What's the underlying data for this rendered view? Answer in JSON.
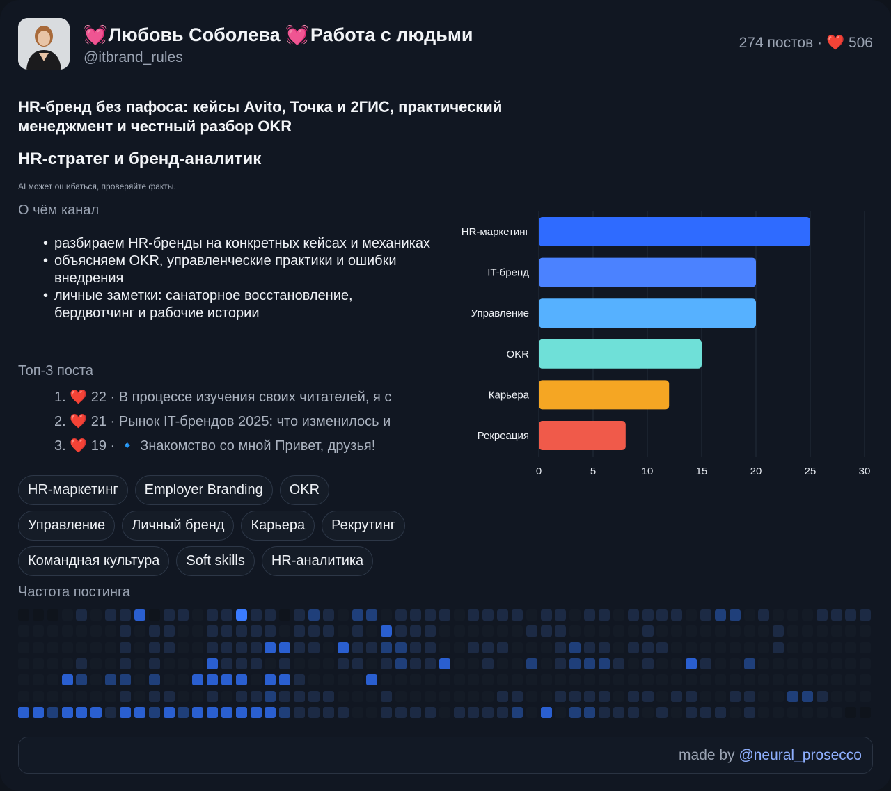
{
  "header": {
    "emoji": "💓",
    "name": "Любовь Соболева",
    "channel": "Работа с людьми",
    "handle": "@itbrand_rules",
    "posts_count": "274 постов",
    "stats_sep": "·",
    "heart": "❤️",
    "likes": "506"
  },
  "headline": "HR-бренд без пафоса: кейсы Avito, Точка и 2ГИС, практический менеджмент и честный разбор OKR",
  "subhead": "HR-стратег и бренд-аналитик",
  "disclaimer": "AI может ошибаться, проверяйте факты.",
  "about": {
    "label": "О чём канал",
    "items": [
      "разбираем HR-бренды на конкретных кейсах и механиках",
      "объясняем OKR, управленческие практики и ошибки внедрения",
      "личные заметки: санаторное восстановление, бердвотчинг и рабочие истории"
    ]
  },
  "top_posts": {
    "label": "Топ-3 поста",
    "items": [
      {
        "num": "1.",
        "heart": "❤️",
        "count": "22",
        "sep": "·",
        "icon": "",
        "text": "В процессе изучения своих читателей, я с"
      },
      {
        "num": "2.",
        "heart": "❤️",
        "count": "21",
        "sep": "·",
        "icon": "",
        "text": "Рынок IT-брендов 2025: что изменилось и"
      },
      {
        "num": "3.",
        "heart": "❤️",
        "count": "19",
        "sep": "·",
        "icon": "🔹",
        "text": "Знакомство со мной Привет, друзья!"
      }
    ]
  },
  "chart_data": {
    "type": "bar",
    "orientation": "horizontal",
    "categories": [
      "HR-маркетинг",
      "IT-бренд",
      "Управление",
      "OKR",
      "Карьера",
      "Рекреация"
    ],
    "values": [
      25,
      20,
      20,
      15,
      12,
      8
    ],
    "colors": [
      "#2f6bff",
      "#4b82ff",
      "#56b1ff",
      "#6fe0d8",
      "#f5a623",
      "#f05a4a"
    ],
    "xlim": [
      0,
      30
    ],
    "xticks": [
      "0",
      "5",
      "10",
      "15",
      "20",
      "25",
      "30"
    ],
    "grid": true
  },
  "tags": [
    [
      "HR-маркетинг",
      "Employer Branding",
      "OKR"
    ],
    [
      "Управление",
      "Личный бренд",
      "Карьера",
      "Рекрутинг"
    ],
    [
      "Командная культура",
      "Soft skills",
      "HR-аналитика"
    ]
  ],
  "posting_frequency": {
    "label": "Частота постинга",
    "colors": [
      "#0f141c",
      "#141b26",
      "#1c2a44",
      "#1f3f7a",
      "#2a5fd0",
      "#3a7bff"
    ],
    "levels": [
      "00012122402212252202321331222212222122122122221233121112222",
      "11111112122112222212221214222111111222111112111111112111111",
      "11111112122112222442214223322112221112322122211111112111111",
      "11112112121114222121112212322411211312333212114211311111111",
      "11143133131144441442111141111111111111111111111111111111111",
      "11111112122112122322221112111111122112222122122112211332111",
      "44344424434344444432222112222122223141332221212221211111100"
    ]
  },
  "footer": {
    "prefix": "made by",
    "link": "@neural_prosecco"
  }
}
